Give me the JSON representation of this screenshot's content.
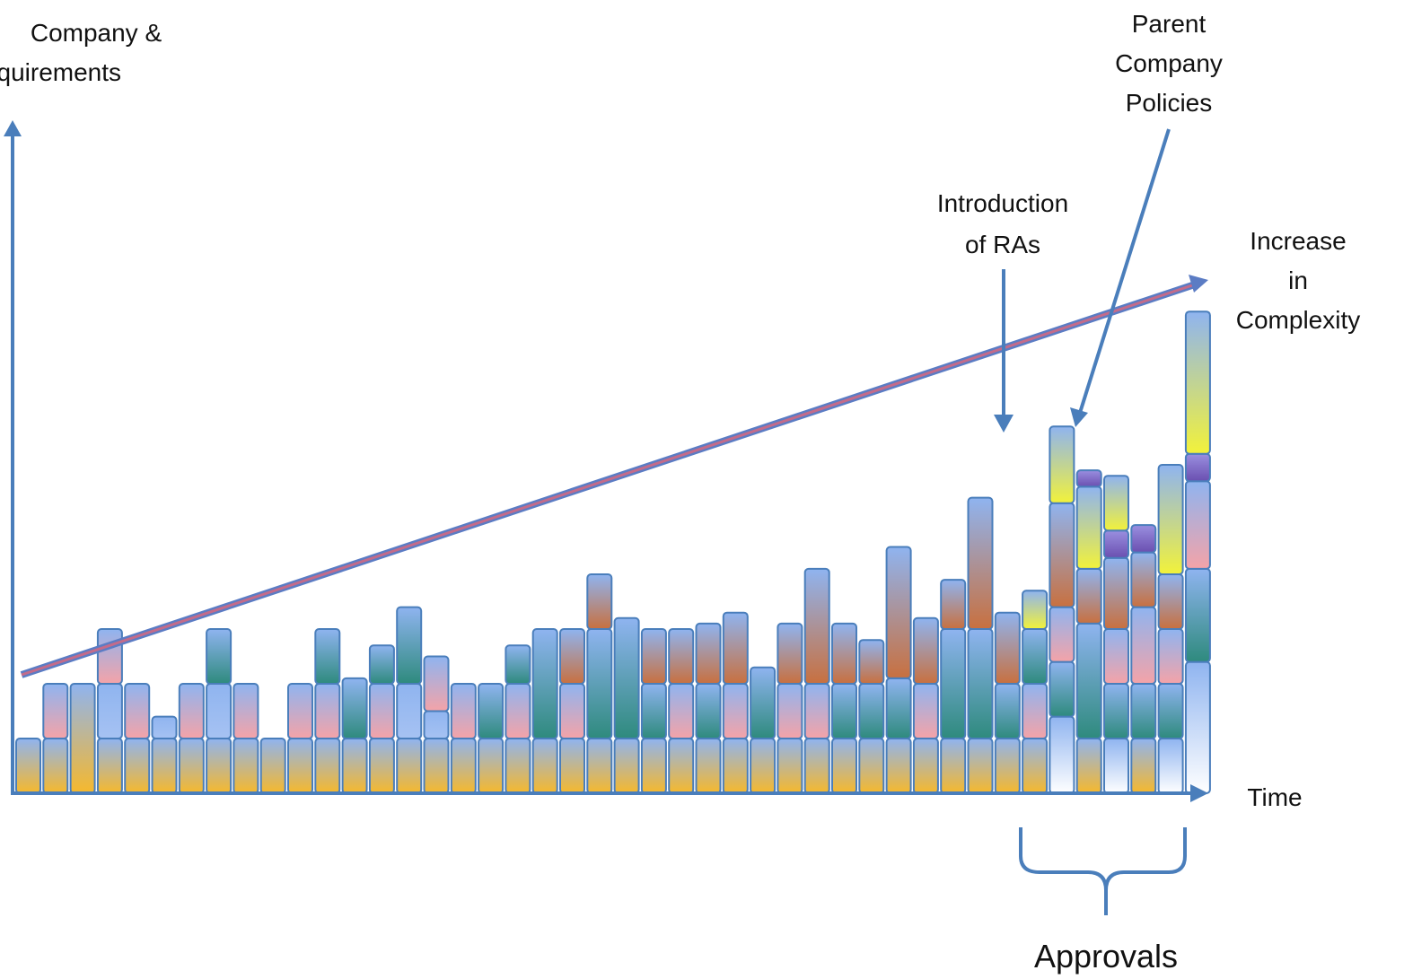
{
  "labels": {
    "y_axis": [
      "Company &",
      "equirements"
    ],
    "x_axis": "Time",
    "complexity": [
      "Increase",
      "in",
      "Complexity"
    ],
    "introduction": [
      "Introduction",
      "of RAs"
    ],
    "parent_company": [
      "Parent",
      "Company",
      "Policies"
    ],
    "approvals": "Approvals"
  },
  "colors": {
    "axis": "#4a7ebb",
    "trend": "#5b7cc4",
    "trend_inner": "#c46b8a",
    "base_bottom": "#f6b82c",
    "base_top": "#8fb4f0",
    "pink": "#f4a3a8",
    "teal": "#2e8a7d",
    "rust": "#c8703f",
    "yellow": "#f2f23a",
    "purple": "#6a4fb0",
    "light": "#ffffff"
  },
  "chart_data": {
    "type": "bar",
    "description_units": "relative stacked level units (1 unit = one bottom block height)",
    "bars": [
      {
        "segments": [
          {
            "kind": "base",
            "h": 1.0
          }
        ]
      },
      {
        "segments": [
          {
            "kind": "base",
            "h": 1.0
          },
          {
            "kind": "pink",
            "h": 1.0
          }
        ]
      },
      {
        "segments": [
          {
            "kind": "base",
            "h": 2.0
          }
        ]
      },
      {
        "segments": [
          {
            "kind": "base",
            "h": 1.0
          },
          {
            "kind": "blue",
            "h": 1.0
          },
          {
            "kind": "pink",
            "h": 1.0
          }
        ]
      },
      {
        "segments": [
          {
            "kind": "base",
            "h": 1.0
          },
          {
            "kind": "pink",
            "h": 1.0
          }
        ]
      },
      {
        "segments": [
          {
            "kind": "base",
            "h": 1.0
          },
          {
            "kind": "blue",
            "h": 0.4
          }
        ]
      },
      {
        "segments": [
          {
            "kind": "base",
            "h": 1.0
          },
          {
            "kind": "pink",
            "h": 1.0
          }
        ]
      },
      {
        "segments": [
          {
            "kind": "base",
            "h": 1.0
          },
          {
            "kind": "blue",
            "h": 1.0
          },
          {
            "kind": "teal",
            "h": 1.0
          }
        ]
      },
      {
        "segments": [
          {
            "kind": "base",
            "h": 1.0
          },
          {
            "kind": "pink",
            "h": 1.0
          }
        ]
      },
      {
        "segments": [
          {
            "kind": "base",
            "h": 1.0
          }
        ]
      },
      {
        "segments": [
          {
            "kind": "base",
            "h": 1.0
          },
          {
            "kind": "pink",
            "h": 1.0
          }
        ]
      },
      {
        "segments": [
          {
            "kind": "base",
            "h": 1.0
          },
          {
            "kind": "pink",
            "h": 1.0
          },
          {
            "kind": "teal",
            "h": 1.0
          }
        ]
      },
      {
        "segments": [
          {
            "kind": "base",
            "h": 1.0
          },
          {
            "kind": "teal",
            "h": 1.1
          }
        ]
      },
      {
        "segments": [
          {
            "kind": "base",
            "h": 1.0
          },
          {
            "kind": "pink",
            "h": 1.0
          },
          {
            "kind": "teal",
            "h": 0.7
          }
        ]
      },
      {
        "segments": [
          {
            "kind": "base",
            "h": 1.0
          },
          {
            "kind": "blue",
            "h": 1.0
          },
          {
            "kind": "teal",
            "h": 1.4
          }
        ]
      },
      {
        "segments": [
          {
            "kind": "base",
            "h": 1.0
          },
          {
            "kind": "blue",
            "h": 0.5
          },
          {
            "kind": "pink",
            "h": 1.0
          }
        ]
      },
      {
        "segments": [
          {
            "kind": "base",
            "h": 1.0
          },
          {
            "kind": "pink",
            "h": 1.0
          }
        ]
      },
      {
        "segments": [
          {
            "kind": "base",
            "h": 1.0
          },
          {
            "kind": "teal",
            "h": 1.0
          }
        ]
      },
      {
        "segments": [
          {
            "kind": "base",
            "h": 1.0
          },
          {
            "kind": "pink",
            "h": 1.0
          },
          {
            "kind": "teal",
            "h": 0.7
          }
        ]
      },
      {
        "segments": [
          {
            "kind": "base",
            "h": 1.0
          },
          {
            "kind": "teal",
            "h": 2.0
          }
        ]
      },
      {
        "segments": [
          {
            "kind": "base",
            "h": 1.0
          },
          {
            "kind": "pink",
            "h": 1.0
          },
          {
            "kind": "rust",
            "h": 1.0
          }
        ]
      },
      {
        "segments": [
          {
            "kind": "base",
            "h": 1.0
          },
          {
            "kind": "teal",
            "h": 2.0
          },
          {
            "kind": "rust",
            "h": 1.0
          }
        ]
      },
      {
        "segments": [
          {
            "kind": "base",
            "h": 1.0
          },
          {
            "kind": "teal",
            "h": 2.2
          }
        ]
      },
      {
        "segments": [
          {
            "kind": "base",
            "h": 1.0
          },
          {
            "kind": "teal",
            "h": 1.0
          },
          {
            "kind": "rust",
            "h": 1.0
          }
        ]
      },
      {
        "segments": [
          {
            "kind": "base",
            "h": 1.0
          },
          {
            "kind": "pink",
            "h": 1.0
          },
          {
            "kind": "rust",
            "h": 1.0
          }
        ]
      },
      {
        "segments": [
          {
            "kind": "base",
            "h": 1.0
          },
          {
            "kind": "teal",
            "h": 1.0
          },
          {
            "kind": "rust",
            "h": 1.1
          }
        ]
      },
      {
        "segments": [
          {
            "kind": "base",
            "h": 1.0
          },
          {
            "kind": "pink",
            "h": 1.0
          },
          {
            "kind": "rust",
            "h": 1.3
          }
        ]
      },
      {
        "segments": [
          {
            "kind": "base",
            "h": 1.0
          },
          {
            "kind": "teal",
            "h": 1.3
          }
        ]
      },
      {
        "segments": [
          {
            "kind": "base",
            "h": 1.0
          },
          {
            "kind": "pink",
            "h": 1.0
          },
          {
            "kind": "rust",
            "h": 1.1
          }
        ]
      },
      {
        "segments": [
          {
            "kind": "base",
            "h": 1.0
          },
          {
            "kind": "pink",
            "h": 1.0
          },
          {
            "kind": "rust",
            "h": 2.1
          }
        ]
      },
      {
        "segments": [
          {
            "kind": "base",
            "h": 1.0
          },
          {
            "kind": "teal",
            "h": 1.0
          },
          {
            "kind": "rust",
            "h": 1.1
          }
        ]
      },
      {
        "segments": [
          {
            "kind": "base",
            "h": 1.0
          },
          {
            "kind": "teal",
            "h": 1.0
          },
          {
            "kind": "rust",
            "h": 0.8
          }
        ]
      },
      {
        "segments": [
          {
            "kind": "base",
            "h": 1.0
          },
          {
            "kind": "teal",
            "h": 1.1
          },
          {
            "kind": "rust",
            "h": 2.4
          }
        ]
      },
      {
        "segments": [
          {
            "kind": "base",
            "h": 1.0
          },
          {
            "kind": "pink",
            "h": 1.0
          },
          {
            "kind": "rust",
            "h": 1.2
          }
        ]
      },
      {
        "segments": [
          {
            "kind": "base",
            "h": 1.0
          },
          {
            "kind": "teal",
            "h": 2.0
          },
          {
            "kind": "rust",
            "h": 0.9
          }
        ]
      },
      {
        "segments": [
          {
            "kind": "base",
            "h": 1.0
          },
          {
            "kind": "teal",
            "h": 2.0
          },
          {
            "kind": "rust",
            "h": 2.4
          }
        ]
      },
      {
        "segments": [
          {
            "kind": "base",
            "h": 1.0
          },
          {
            "kind": "teal",
            "h": 1.0
          },
          {
            "kind": "rust",
            "h": 1.3
          }
        ]
      },
      {
        "segments": [
          {
            "kind": "base",
            "h": 1.0
          },
          {
            "kind": "pink",
            "h": 1.0
          },
          {
            "kind": "teal",
            "h": 1.0
          },
          {
            "kind": "yellow",
            "h": 0.7
          }
        ]
      },
      {
        "segments": [
          {
            "kind": "light",
            "h": 1.4
          },
          {
            "kind": "teal",
            "h": 1.0
          },
          {
            "kind": "pink",
            "h": 1.0
          },
          {
            "kind": "rust",
            "h": 1.9
          },
          {
            "kind": "yellow",
            "h": 1.4
          }
        ]
      },
      {
        "segments": [
          {
            "kind": "base",
            "h": 1.0
          },
          {
            "kind": "teal",
            "h": 2.1
          },
          {
            "kind": "rust",
            "h": 1.0
          },
          {
            "kind": "yellow",
            "h": 1.5
          },
          {
            "kind": "purple",
            "h": 0.3
          }
        ]
      },
      {
        "segments": [
          {
            "kind": "light",
            "h": 1.0
          },
          {
            "kind": "teal",
            "h": 1.0
          },
          {
            "kind": "pink",
            "h": 1.0
          },
          {
            "kind": "rust",
            "h": 1.3
          },
          {
            "kind": "purple",
            "h": 0.5
          },
          {
            "kind": "yellow",
            "h": 1.0
          }
        ]
      },
      {
        "segments": [
          {
            "kind": "base",
            "h": 1.0
          },
          {
            "kind": "teal",
            "h": 1.0
          },
          {
            "kind": "pink",
            "h": 1.4
          },
          {
            "kind": "rust",
            "h": 1.0
          },
          {
            "kind": "purple",
            "h": 0.5
          }
        ]
      },
      {
        "segments": [
          {
            "kind": "light",
            "h": 1.0
          },
          {
            "kind": "teal",
            "h": 1.0
          },
          {
            "kind": "pink",
            "h": 1.0
          },
          {
            "kind": "rust",
            "h": 1.0
          },
          {
            "kind": "yellow",
            "h": 2.0
          }
        ]
      },
      {
        "segments": [
          {
            "kind": "light",
            "h": 2.4
          },
          {
            "kind": "teal",
            "h": 1.7
          },
          {
            "kind": "pink",
            "h": 1.6
          },
          {
            "kind": "purple",
            "h": 0.5
          },
          {
            "kind": "yellow",
            "h": 2.6
          }
        ]
      }
    ],
    "trend": "increasing",
    "highlighted_bars": {
      "introduction_of_RAs": 37,
      "parent_company_policies": 39,
      "approvals_range": [
        37,
        43
      ]
    }
  }
}
